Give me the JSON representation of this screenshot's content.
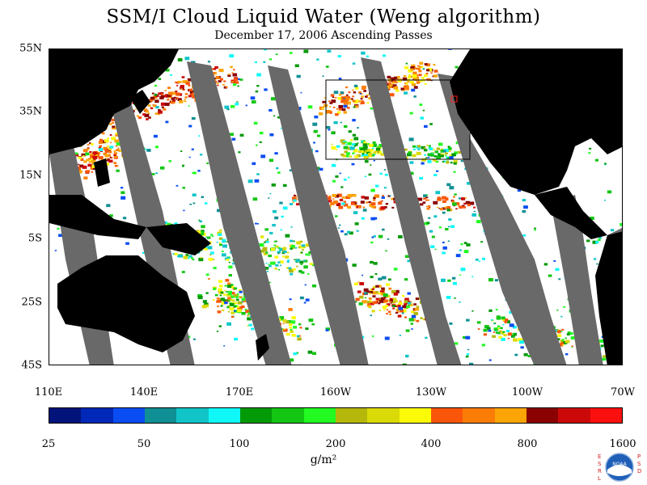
{
  "title": "SSM/I Cloud Liquid Water (Weng algorithm)",
  "subtitle": "December 17, 2006  Ascending Passes",
  "map": {
    "lat_labels": [
      "55N",
      "35N",
      "15N",
      "5S",
      "25S",
      "45S"
    ],
    "lon_labels": [
      "110E",
      "140E",
      "170E",
      "160W",
      "130W",
      "100W",
      "70W"
    ],
    "colors": {
      "land": "#000000",
      "no_data": "#696969",
      "clear": "#ffffff",
      "box": "#000000"
    }
  },
  "colorbar": {
    "labels": [
      "25",
      "50",
      "100",
      "200",
      "400",
      "800",
      "1600"
    ],
    "colors": [
      "#02137a",
      "#0028b8",
      "#0a4df2",
      "#108f94",
      "#10c4c8",
      "#10f7f7",
      "#039a07",
      "#14c614",
      "#22fa22",
      "#b5b80a",
      "#dada06",
      "#fbfb07",
      "#fa5609",
      "#fb7d08",
      "#fba505",
      "#8a0202",
      "#cc0909",
      "#fb1010"
    ],
    "unit_label": "g/m²"
  },
  "logo": {
    "left_text": "ESRL",
    "right_text": "PSD",
    "badge_text": "NOAA"
  }
}
